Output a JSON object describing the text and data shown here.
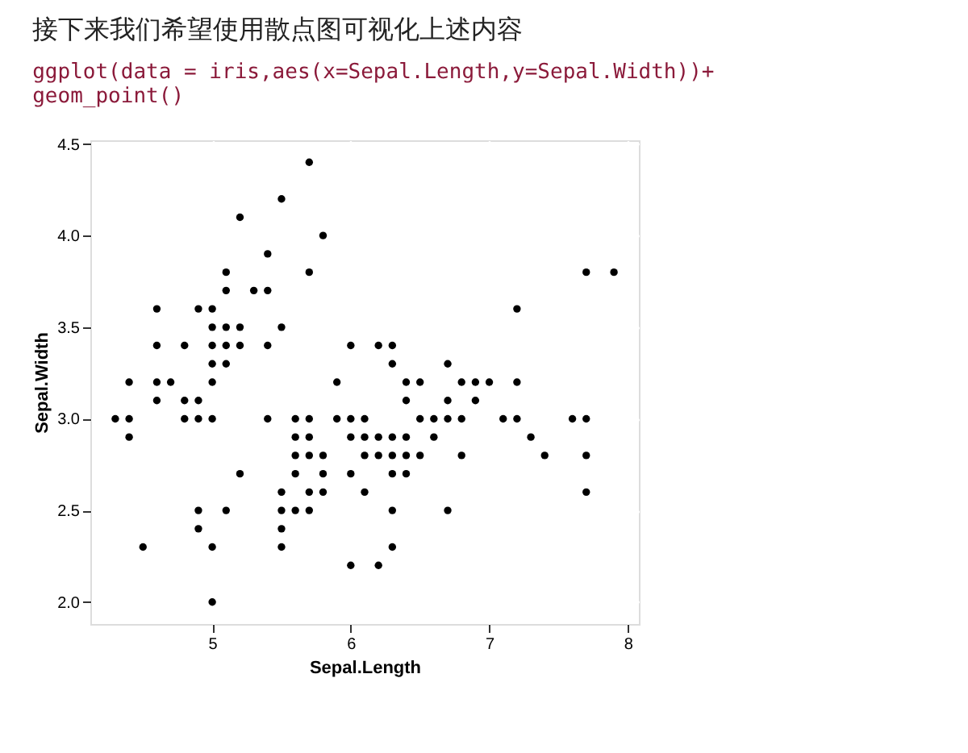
{
  "chart_data": {
    "type": "scatter",
    "title": "接下来我们希望使用散点图可视化上述内容",
    "subtitle": "ggplot(data = iris,aes(x=Sepal.Length,y=Sepal.Width))+\n  geom_point()",
    "xlabel": "Sepal.Length",
    "ylabel": "Sepal.Width",
    "grid": true,
    "xlim": [
      4.12,
      8.08
    ],
    "xticks": [
      5,
      6,
      7,
      8
    ],
    "ylim": [
      1.88,
      4.52
    ],
    "yticks": [
      {
        "value": 2,
        "label": "2.0"
      },
      2.5,
      {
        "value": 3,
        "label": "3.0"
      },
      3.5,
      {
        "value": 4,
        "label": "4.0"
      },
      4.5
    ],
    "series": [
      {
        "color": "#000000",
        "x": [
          4.3,
          4.4,
          4.4,
          4.4,
          4.5,
          4.6,
          4.6,
          4.6,
          4.6,
          4.7,
          4.8,
          4.8,
          4.8,
          4.9,
          4.9,
          4.9,
          4.9,
          4.9,
          5.0,
          5.0,
          5.0,
          5.0,
          5.0,
          5.0,
          5.0,
          5.0,
          5.1,
          5.1,
          5.1,
          5.1,
          5.1,
          5.1,
          5.2,
          5.2,
          5.2,
          5.2,
          5.3,
          5.4,
          5.4,
          5.4,
          5.4,
          5.5,
          5.5,
          5.5,
          5.5,
          5.5,
          5.5,
          5.6,
          5.6,
          5.6,
          5.6,
          5.6,
          5.7,
          5.7,
          5.7,
          5.7,
          5.7,
          5.7,
          5.7,
          5.8,
          5.8,
          5.8,
          5.8,
          5.9,
          5.9,
          6.0,
          6.0,
          6.0,
          6.0,
          6.0,
          6.1,
          6.1,
          6.1,
          6.1,
          6.2,
          6.2,
          6.2,
          6.2,
          6.3,
          6.3,
          6.3,
          6.3,
          6.3,
          6.3,
          6.3,
          6.4,
          6.4,
          6.4,
          6.4,
          6.4,
          6.5,
          6.5,
          6.5,
          6.6,
          6.6,
          6.7,
          6.7,
          6.7,
          6.7,
          6.8,
          6.8,
          6.8,
          6.9,
          6.9,
          7.0,
          7.1,
          7.2,
          7.2,
          7.2,
          7.3,
          7.4,
          7.6,
          7.7,
          7.7,
          7.7,
          7.7,
          7.9
        ],
        "values": [
          3.0,
          2.9,
          3.0,
          3.2,
          2.3,
          3.1,
          3.4,
          3.6,
          3.2,
          3.2,
          3.4,
          3.0,
          3.1,
          3.0,
          3.1,
          3.6,
          2.4,
          2.5,
          3.6,
          3.4,
          3.0,
          3.2,
          3.5,
          3.3,
          2.0,
          2.3,
          3.5,
          3.8,
          3.7,
          3.3,
          3.4,
          2.5,
          3.5,
          3.4,
          4.1,
          2.7,
          3.7,
          3.9,
          3.7,
          3.4,
          3.0,
          4.2,
          3.5,
          2.3,
          2.4,
          2.5,
          2.6,
          2.9,
          3.0,
          2.5,
          2.7,
          2.8,
          4.4,
          3.8,
          2.8,
          2.6,
          3.0,
          2.9,
          2.5,
          4.0,
          2.7,
          2.6,
          2.8,
          3.0,
          3.2,
          2.2,
          2.9,
          2.7,
          3.4,
          3.0,
          2.9,
          2.8,
          3.0,
          2.6,
          2.2,
          2.9,
          2.8,
          3.4,
          3.3,
          2.5,
          2.3,
          2.9,
          2.7,
          2.8,
          3.4,
          3.2,
          2.9,
          2.7,
          2.8,
          3.1,
          2.8,
          3.0,
          3.2,
          2.9,
          3.0,
          3.1,
          3.0,
          2.5,
          3.3,
          2.8,
          3.0,
          3.2,
          3.1,
          3.2,
          3.2,
          3.0,
          3.6,
          3.2,
          3.0,
          2.9,
          2.8,
          3.0,
          3.8,
          2.6,
          2.8,
          3.0,
          3.8
        ]
      }
    ]
  }
}
